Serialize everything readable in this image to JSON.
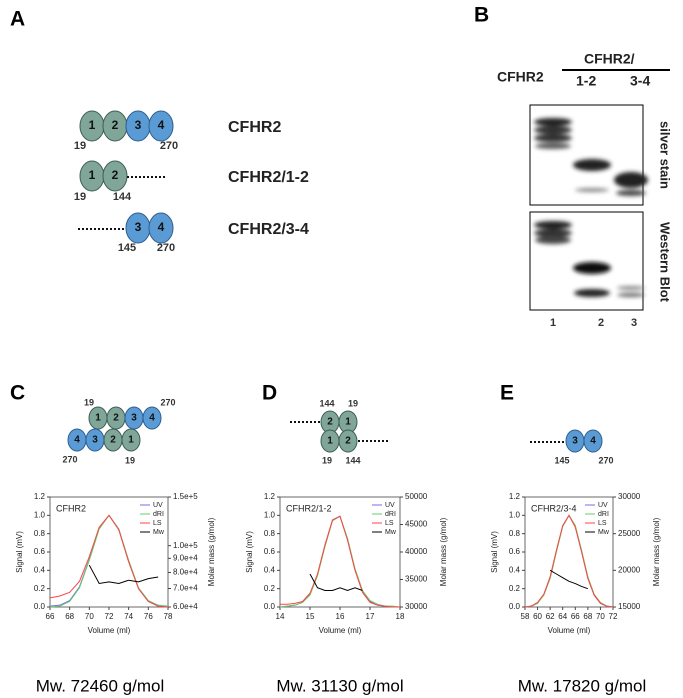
{
  "panel_a": {
    "label": "A",
    "constructs": [
      {
        "name": "CFHR2",
        "domains": [
          "1",
          "2",
          "3",
          "4"
        ],
        "start": "19",
        "end": "270"
      },
      {
        "name": "CFHR2/1-2",
        "domains": [
          "1",
          "2"
        ],
        "start": "19",
        "end": "144"
      },
      {
        "name": "CFHR2/3-4",
        "domains": [
          "3",
          "4"
        ],
        "start": "145",
        "end": "270"
      }
    ]
  },
  "panel_b": {
    "label": "B",
    "lane_header": "CFHR2",
    "group_header": "CFHR2/",
    "group_lanes": [
      "1-2",
      "3-4"
    ],
    "blots": [
      "silver stain",
      "Western Blot"
    ],
    "lanes": [
      "1",
      "2",
      "3"
    ]
  },
  "panels": [
    {
      "label": "C",
      "domains_top": [
        "1",
        "2",
        "3",
        "4"
      ],
      "domains_bottom": [
        "4",
        "3",
        "2",
        "1"
      ],
      "residues": [
        "19",
        "270",
        "270",
        "19"
      ],
      "result": "Mw. 72460 g/mol"
    },
    {
      "label": "D",
      "domains_top": [
        "2",
        "1"
      ],
      "domains_bottom": [
        "1",
        "2"
      ],
      "residues": [
        "144",
        "19",
        "19",
        "144"
      ],
      "result": "Mw. 31130 g/mol"
    },
    {
      "label": "E",
      "domains_top": [
        "3",
        "4"
      ],
      "residues": [
        "145",
        "270"
      ],
      "result": "Mw. 17820 g/mol"
    }
  ],
  "chart_data": [
    {
      "type": "line",
      "title": "CFHR2",
      "xlabel": "Volume (ml)",
      "ylabel": "Signal (mV)",
      "y2label": "Molar mass (g/mol)",
      "x": [
        66,
        67,
        68,
        69,
        70,
        71,
        72,
        73,
        74,
        75,
        76,
        77,
        78
      ],
      "xlim": [
        66,
        78
      ],
      "xticks": [
        66,
        68,
        70,
        72,
        74,
        76,
        78
      ],
      "ylim": [
        0,
        1.2
      ],
      "yticks": [
        {
          "value": 0,
          "label": "0.0"
        },
        0.2,
        0.4,
        0.6,
        0.8,
        {
          "value": 1,
          "label": "1.0"
        },
        1.2
      ],
      "y2lim": [
        60000,
        150000
      ],
      "y2scale": "log",
      "y2ticks": [
        {
          "value": 60000,
          "label": "6.0e+4"
        },
        {
          "value": 70000,
          "label": "7.0e+4"
        },
        {
          "value": 80000,
          "label": "8.0e+4"
        },
        {
          "value": 90000,
          "label": "9.0e+4"
        },
        {
          "value": 100000,
          "label": "1.0e+5"
        },
        {
          "value": 150000,
          "label": "1.5e+5"
        }
      ],
      "series": [
        {
          "name": "UV",
          "color": "#7b68ee",
          "values": [
            0.01,
            0.02,
            0.07,
            0.22,
            0.52,
            0.86,
            1.0,
            0.85,
            0.5,
            0.2,
            0.06,
            0.01,
            0.0
          ]
        },
        {
          "name": "dRI",
          "color": "#66cc66",
          "values": [
            0.0,
            0.01,
            0.06,
            0.21,
            0.51,
            0.85,
            1.0,
            0.85,
            0.51,
            0.21,
            0.07,
            0.02,
            0.01
          ]
        },
        {
          "name": "LS",
          "color": "#ff4444",
          "values": [
            0.1,
            0.12,
            0.16,
            0.28,
            0.55,
            0.87,
            1.0,
            0.84,
            0.49,
            0.2,
            0.06,
            0.01,
            0.0
          ]
        },
        {
          "name": "Mw",
          "color": "#000000",
          "axis": "y2",
          "values": [
            null,
            null,
            null,
            null,
            85000,
            73000,
            74000,
            73000,
            75000,
            74000,
            76000,
            77000,
            null
          ]
        }
      ]
    },
    {
      "type": "line",
      "title": "CFHR2/1-2",
      "xlabel": "Volume (ml)",
      "ylabel": "Signal (mV)",
      "y2label": "Molar mass (g/mol)",
      "x": [
        14,
        14.25,
        14.5,
        14.75,
        15,
        15.25,
        15.5,
        15.75,
        16,
        16.25,
        16.5,
        16.75,
        17,
        17.25,
        17.5,
        17.75,
        18
      ],
      "xlim": [
        14,
        18
      ],
      "xticks": [
        14,
        15,
        16,
        17,
        18
      ],
      "ylim": [
        0,
        1.2
      ],
      "yticks": [
        {
          "value": 0,
          "label": "0.0"
        },
        0.2,
        0.4,
        0.6,
        0.8,
        {
          "value": 1,
          "label": "1.0"
        },
        1.2
      ],
      "y2lim": [
        30000,
        50000
      ],
      "y2ticks": [
        30000,
        35000,
        40000,
        45000,
        50000
      ],
      "series": [
        {
          "name": "UV",
          "color": "#7b68ee",
          "values": [
            0,
            0.01,
            0.02,
            0.05,
            0.14,
            0.35,
            0.67,
            0.95,
            0.99,
            0.74,
            0.41,
            0.17,
            0.06,
            0.02,
            0.01,
            0,
            0
          ]
        },
        {
          "name": "dRI",
          "color": "#66cc66",
          "values": [
            0,
            0.01,
            0.02,
            0.05,
            0.13,
            0.34,
            0.66,
            0.94,
            0.99,
            0.75,
            0.42,
            0.18,
            0.07,
            0.03,
            0.01,
            0.01,
            0
          ]
        },
        {
          "name": "LS",
          "color": "#ff4444",
          "values": [
            0.03,
            0.03,
            0.04,
            0.06,
            0.15,
            0.36,
            0.68,
            0.95,
            0.99,
            0.73,
            0.4,
            0.16,
            0.05,
            0.02,
            0.01,
            0,
            0
          ]
        },
        {
          "name": "Mw",
          "color": "#000000",
          "axis": "y2",
          "values": [
            null,
            null,
            null,
            null,
            36000,
            33500,
            33000,
            33000,
            33500,
            33000,
            33500,
            33000,
            null,
            null,
            null,
            null,
            null
          ]
        }
      ]
    },
    {
      "type": "line",
      "title": "CFHR2/3-4",
      "xlabel": "Volume (ml)",
      "ylabel": "Signal (mV)",
      "y2label": "Molar mass (g/mol)",
      "x": [
        58,
        59,
        60,
        61,
        62,
        63,
        64,
        65,
        66,
        67,
        68,
        69,
        70,
        71,
        72
      ],
      "xlim": [
        58,
        72
      ],
      "xticks": [
        58,
        60,
        62,
        64,
        66,
        68,
        70,
        72
      ],
      "ylim": [
        0,
        1.2
      ],
      "yticks": [
        {
          "value": 0,
          "label": "0.0"
        },
        0.2,
        0.4,
        0.6,
        0.8,
        {
          "value": 1,
          "label": "1.0"
        },
        1.2
      ],
      "y2lim": [
        15000,
        30000
      ],
      "y2ticks": [
        15000,
        20000,
        25000,
        30000
      ],
      "series": [
        {
          "name": "UV",
          "color": "#7b68ee",
          "values": [
            0.0,
            0.01,
            0.04,
            0.14,
            0.32,
            0.61,
            0.88,
            1.0,
            0.88,
            0.61,
            0.32,
            0.13,
            0.04,
            0.01,
            0.0
          ]
        },
        {
          "name": "dRI",
          "color": "#66cc66",
          "values": [
            0.0,
            0.01,
            0.04,
            0.13,
            0.31,
            0.6,
            0.88,
            1.0,
            0.89,
            0.62,
            0.33,
            0.14,
            0.05,
            0.01,
            0.0
          ]
        },
        {
          "name": "LS",
          "color": "#ff4444",
          "values": [
            0.0,
            0.01,
            0.05,
            0.14,
            0.33,
            0.62,
            0.89,
            1.0,
            0.87,
            0.6,
            0.31,
            0.13,
            0.04,
            0.01,
            0.0
          ]
        },
        {
          "name": "Mw",
          "color": "#000000",
          "axis": "y2",
          "values": [
            null,
            null,
            null,
            null,
            20000,
            19500,
            19000,
            18500,
            18200,
            17800,
            17500,
            null,
            null,
            null,
            null
          ]
        }
      ]
    }
  ]
}
